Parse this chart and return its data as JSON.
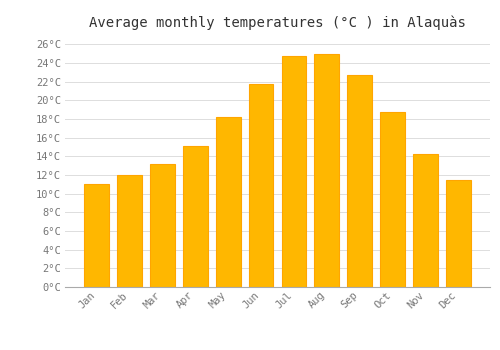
{
  "months": [
    "Jan",
    "Feb",
    "Mar",
    "Apr",
    "May",
    "Jun",
    "Jul",
    "Aug",
    "Sep",
    "Oct",
    "Nov",
    "Dec"
  ],
  "values": [
    11.0,
    12.0,
    13.2,
    15.1,
    18.2,
    21.7,
    24.7,
    25.0,
    22.7,
    18.7,
    14.2,
    11.5
  ],
  "bar_color": "#FFA500",
  "bar_face_color": "#FFB700",
  "background_color": "#FFFFFF",
  "grid_color": "#DDDDDD",
  "title": "Average monthly temperatures (°C ) in Alaquàs",
  "title_fontsize": 10,
  "tick_label_color": "#777777",
  "tick_label_fontsize": 7.5,
  "ylim": [
    0,
    27
  ],
  "yticks": [
    0,
    2,
    4,
    6,
    8,
    10,
    12,
    14,
    16,
    18,
    20,
    22,
    24,
    26
  ],
  "ytick_labels": [
    "0°C",
    "2°C",
    "4°C",
    "6°C",
    "8°C",
    "10°C",
    "12°C",
    "14°C",
    "16°C",
    "18°C",
    "20°C",
    "22°C",
    "24°C",
    "26°C"
  ]
}
